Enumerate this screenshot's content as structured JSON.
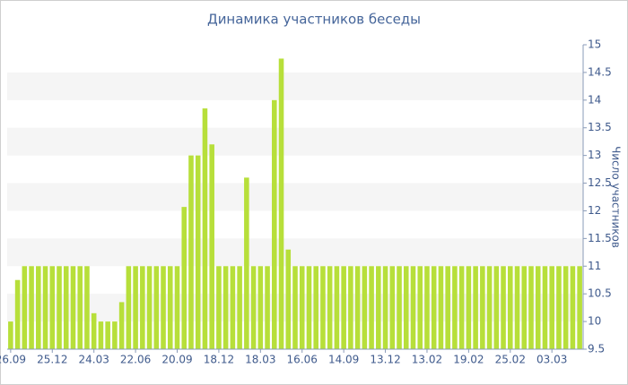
{
  "chart_data": {
    "type": "bar",
    "title": "Динамика участников беседы",
    "y_label": "Число участников",
    "categories": [
      "26.09",
      null,
      null,
      null,
      null,
      null,
      "25.12",
      null,
      null,
      null,
      null,
      null,
      "24.03",
      null,
      null,
      null,
      null,
      null,
      "22.06",
      null,
      null,
      null,
      null,
      null,
      "20.09",
      null,
      null,
      null,
      null,
      null,
      "18.12",
      null,
      null,
      null,
      null,
      null,
      "18.03",
      null,
      null,
      null,
      null,
      null,
      "16.06",
      null,
      null,
      null,
      null,
      null,
      "14.09",
      null,
      null,
      null,
      null,
      null,
      "13.12",
      null,
      null,
      null,
      null,
      null,
      "13.02",
      null,
      null,
      null,
      null,
      null,
      "19.02",
      null,
      null,
      null,
      null,
      null,
      "25.02",
      null,
      null,
      null,
      null,
      null,
      "03.03",
      null,
      null,
      null,
      null
    ],
    "values": [
      10,
      10.75,
      11,
      11,
      11,
      11,
      11,
      11,
      11,
      11,
      11,
      11,
      10.15,
      10,
      10,
      10,
      10.35,
      11,
      11,
      11,
      11,
      11,
      11,
      11,
      11,
      12.07,
      13,
      13,
      13.85,
      13.2,
      11,
      11,
      11,
      11,
      12.6,
      11,
      11,
      11,
      14,
      14.75,
      11.3,
      11,
      11,
      11,
      11,
      11,
      11,
      11,
      11,
      11,
      11,
      11,
      11,
      11,
      11,
      11,
      11,
      11,
      11,
      11,
      11,
      11,
      11,
      11,
      11,
      11,
      11,
      11,
      11,
      11,
      11,
      11,
      11,
      11,
      11,
      11,
      11,
      11,
      11,
      11,
      11,
      11,
      11
    ],
    "color": "#b7df3a",
    "y_axis_side": "right",
    "ylim": [
      9.5,
      15
    ],
    "yticks": [
      9.5,
      10,
      10.5,
      11,
      11.5,
      12,
      12.5,
      13,
      13.5,
      14,
      14.5,
      15
    ],
    "grid": true
  }
}
